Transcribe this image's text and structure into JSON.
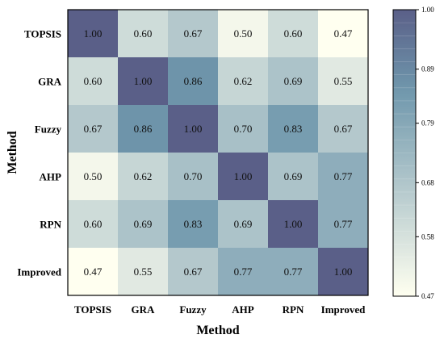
{
  "chart_data": {
    "type": "heatmap",
    "x_categories": [
      "TOPSIS",
      "GRA",
      "Fuzzy",
      "AHP",
      "RPN",
      "Improved"
    ],
    "y_categories": [
      "TOPSIS",
      "GRA",
      "Fuzzy",
      "AHP",
      "RPN",
      "Improved"
    ],
    "values": [
      [
        1.0,
        0.6,
        0.67,
        0.5,
        0.6,
        0.47
      ],
      [
        0.6,
        1.0,
        0.86,
        0.62,
        0.69,
        0.55
      ],
      [
        0.67,
        0.86,
        1.0,
        0.7,
        0.83,
        0.67
      ],
      [
        0.5,
        0.62,
        0.7,
        1.0,
        0.69,
        0.77
      ],
      [
        0.6,
        0.69,
        0.83,
        0.69,
        1.0,
        0.77
      ],
      [
        0.47,
        0.55,
        0.67,
        0.77,
        0.77,
        1.0
      ]
    ],
    "value_format": "0.00",
    "xlabel": "Method",
    "ylabel": "Method",
    "colorbar": {
      "ticks": [
        "0.47",
        "0.58",
        "0.68",
        "0.79",
        "0.89",
        "1.00"
      ],
      "range": [
        0.47,
        1.0
      ],
      "low_color": "#fffff0",
      "mid_color": "#6f97ac",
      "high_color": "#5a5f88"
    }
  }
}
